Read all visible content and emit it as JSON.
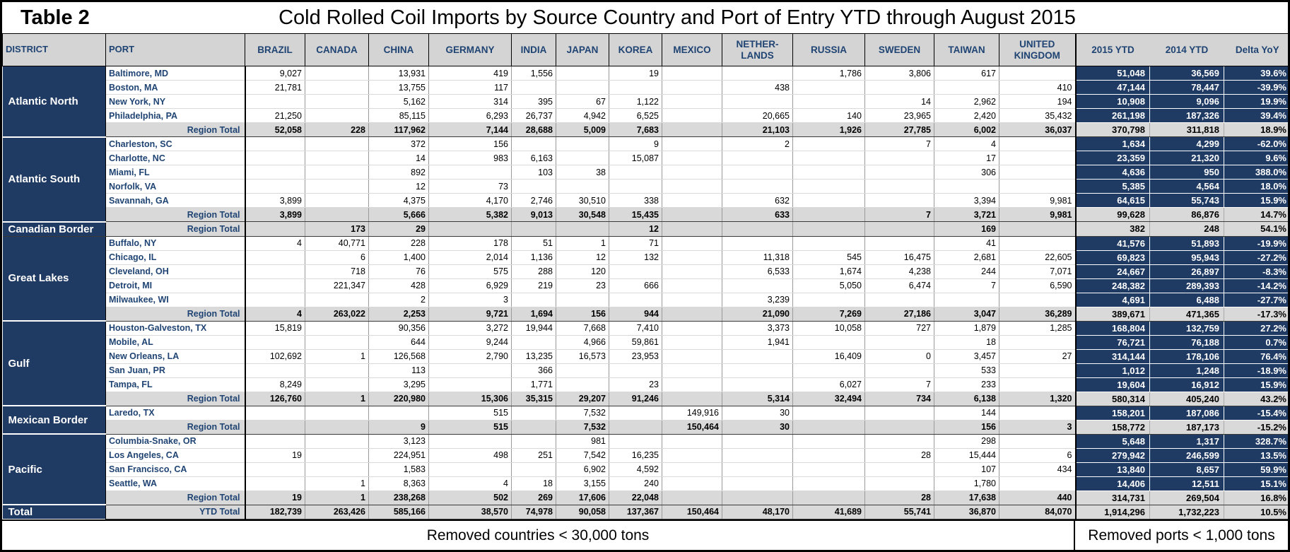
{
  "title": {
    "label": "Table 2",
    "text": "Cold Rolled Coil Imports by Source Country and Port of Entry YTD through August 2015"
  },
  "header": {
    "district": "DISTRICT",
    "port": "PORT",
    "countries": [
      "BRAZIL",
      "CANADA",
      "CHINA",
      "GERMANY",
      "INDIA",
      "JAPAN",
      "KOREA",
      "MEXICO",
      "NETHER-\nLANDS",
      "RUSSIA",
      "SWEDEN",
      "TAIWAN",
      "UNITED\nKINGDOM"
    ],
    "ytd_columns": [
      "2015 YTD",
      "2014 YTD",
      "Delta YoY"
    ]
  },
  "labels": {
    "region_total": "Region Total",
    "grand_total_district": "Total",
    "grand_total_row": "YTD Total"
  },
  "colors": {
    "navy": "#1f3a63",
    "header_gray": "#d4d4d4",
    "total_row_gray": "#d9d9d9",
    "label_blue": "#1f4473"
  },
  "districts": [
    {
      "name": "Atlantic North",
      "ports": [
        {
          "port": "Baltimore, MD",
          "values": [
            "9,027",
            "",
            "13,931",
            "419",
            "1,556",
            "",
            "19",
            "",
            "",
            "1,786",
            "3,806",
            "617",
            "",
            "51,048",
            "36,569",
            "39.6%"
          ]
        },
        {
          "port": "Boston, MA",
          "values": [
            "21,781",
            "",
            "13,755",
            "117",
            "",
            "",
            "",
            "",
            "438",
            "",
            "",
            "",
            "410",
            "47,144",
            "78,447",
            "-39.9%"
          ]
        },
        {
          "port": "New York, NY",
          "values": [
            "",
            "",
            "5,162",
            "314",
            "395",
            "67",
            "1,122",
            "",
            "",
            "",
            "14",
            "2,962",
            "194",
            "10,908",
            "9,096",
            "19.9%"
          ]
        },
        {
          "port": "Philadelphia, PA",
          "values": [
            "21,250",
            "",
            "85,115",
            "6,293",
            "26,737",
            "4,942",
            "6,525",
            "",
            "20,665",
            "140",
            "23,965",
            "2,420",
            "35,432",
            "261,198",
            "187,326",
            "39.4%"
          ]
        }
      ],
      "total": {
        "values": [
          "52,058",
          "228",
          "117,962",
          "7,144",
          "28,688",
          "5,009",
          "7,683",
          "",
          "21,103",
          "1,926",
          "27,785",
          "6,002",
          "36,037",
          "370,798",
          "311,818",
          "18.9%"
        ]
      }
    },
    {
      "name": "Atlantic South",
      "ports": [
        {
          "port": "Charleston, SC",
          "values": [
            "",
            "",
            "372",
            "156",
            "",
            "",
            "9",
            "",
            "2",
            "",
            "7",
            "4",
            "",
            "1,634",
            "4,299",
            "-62.0%"
          ]
        },
        {
          "port": "Charlotte, NC",
          "values": [
            "",
            "",
            "14",
            "983",
            "6,163",
            "",
            "15,087",
            "",
            "",
            "",
            "",
            "17",
            "",
            "23,359",
            "21,320",
            "9.6%"
          ]
        },
        {
          "port": "Miami, FL",
          "values": [
            "",
            "",
            "892",
            "",
            "103",
            "38",
            "",
            "",
            "",
            "",
            "",
            "306",
            "",
            "4,636",
            "950",
            "388.0%"
          ]
        },
        {
          "port": "Norfolk, VA",
          "values": [
            "",
            "",
            "12",
            "73",
            "",
            "",
            "",
            "",
            "",
            "",
            "",
            "",
            "",
            "5,385",
            "4,564",
            "18.0%"
          ]
        },
        {
          "port": "Savannah, GA",
          "values": [
            "3,899",
            "",
            "4,375",
            "4,170",
            "2,746",
            "30,510",
            "338",
            "",
            "632",
            "",
            "",
            "3,394",
            "9,981",
            "64,615",
            "55,743",
            "15.9%"
          ]
        }
      ],
      "total": {
        "values": [
          "3,899",
          "",
          "5,666",
          "5,382",
          "9,013",
          "30,548",
          "15,435",
          "",
          "633",
          "",
          "7",
          "3,721",
          "9,981",
          "99,628",
          "86,876",
          "14.7%"
        ]
      }
    },
    {
      "name": "Canadian Border",
      "ports": [],
      "total": {
        "values": [
          "",
          "173",
          "29",
          "",
          "",
          "",
          "12",
          "",
          "",
          "",
          "",
          "169",
          "",
          "382",
          "248",
          "54.1%"
        ]
      }
    },
    {
      "name": "Great Lakes",
      "ports": [
        {
          "port": "Buffalo, NY",
          "values": [
            "4",
            "40,771",
            "228",
            "178",
            "51",
            "1",
            "71",
            "",
            "",
            "",
            "",
            "41",
            "",
            "41,576",
            "51,893",
            "-19.9%"
          ]
        },
        {
          "port": "Chicago, IL",
          "values": [
            "",
            "6",
            "1,400",
            "2,014",
            "1,136",
            "12",
            "132",
            "",
            "11,318",
            "545",
            "16,475",
            "2,681",
            "22,605",
            "69,823",
            "95,943",
            "-27.2%"
          ]
        },
        {
          "port": "Cleveland, OH",
          "values": [
            "",
            "718",
            "76",
            "575",
            "288",
            "120",
            "",
            "",
            "6,533",
            "1,674",
            "4,238",
            "244",
            "7,071",
            "24,667",
            "26,897",
            "-8.3%"
          ]
        },
        {
          "port": "Detroit, MI",
          "values": [
            "",
            "221,347",
            "428",
            "6,929",
            "219",
            "23",
            "666",
            "",
            "",
            "5,050",
            "6,474",
            "7",
            "6,590",
            "248,382",
            "289,393",
            "-14.2%"
          ]
        },
        {
          "port": "Milwaukee, WI",
          "values": [
            "",
            "",
            "2",
            "3",
            "",
            "",
            "",
            "",
            "3,239",
            "",
            "",
            "",
            "",
            "4,691",
            "6,488",
            "-27.7%"
          ]
        }
      ],
      "total": {
        "values": [
          "4",
          "263,022",
          "2,253",
          "9,721",
          "1,694",
          "156",
          "944",
          "",
          "21,090",
          "7,269",
          "27,186",
          "3,047",
          "36,289",
          "389,671",
          "471,365",
          "-17.3%"
        ]
      }
    },
    {
      "name": "Gulf",
      "ports": [
        {
          "port": "Houston-Galveston, TX",
          "values": [
            "15,819",
            "",
            "90,356",
            "3,272",
            "19,944",
            "7,668",
            "7,410",
            "",
            "3,373",
            "10,058",
            "727",
            "1,879",
            "1,285",
            "168,804",
            "132,759",
            "27.2%"
          ]
        },
        {
          "port": "Mobile, AL",
          "values": [
            "",
            "",
            "644",
            "9,244",
            "",
            "4,966",
            "59,861",
            "",
            "1,941",
            "",
            "",
            "18",
            "",
            "76,721",
            "76,188",
            "0.7%"
          ]
        },
        {
          "port": "New Orleans, LA",
          "values": [
            "102,692",
            "1",
            "126,568",
            "2,790",
            "13,235",
            "16,573",
            "23,953",
            "",
            "",
            "16,409",
            "0",
            "3,457",
            "27",
            "314,144",
            "178,106",
            "76.4%"
          ]
        },
        {
          "port": "San Juan, PR",
          "values": [
            "",
            "",
            "113",
            "",
            "366",
            "",
            "",
            "",
            "",
            "",
            "",
            "533",
            "",
            "1,012",
            "1,248",
            "-18.9%"
          ]
        },
        {
          "port": "Tampa, FL",
          "values": [
            "8,249",
            "",
            "3,295",
            "",
            "1,771",
            "",
            "23",
            "",
            "",
            "6,027",
            "7",
            "233",
            "",
            "19,604",
            "16,912",
            "15.9%"
          ]
        }
      ],
      "total": {
        "values": [
          "126,760",
          "1",
          "220,980",
          "15,306",
          "35,315",
          "29,207",
          "91,246",
          "",
          "5,314",
          "32,494",
          "734",
          "6,138",
          "1,320",
          "580,314",
          "405,240",
          "43.2%"
        ]
      }
    },
    {
      "name": "Mexican Border",
      "ports": [
        {
          "port": "Laredo, TX",
          "values": [
            "",
            "",
            "",
            "515",
            "",
            "7,532",
            "",
            "149,916",
            "30",
            "",
            "",
            "144",
            "",
            "158,201",
            "187,086",
            "-15.4%"
          ]
        }
      ],
      "total": {
        "values": [
          "",
          "",
          "9",
          "515",
          "",
          "7,532",
          "",
          "150,464",
          "30",
          "",
          "",
          "156",
          "3",
          "158,772",
          "187,173",
          "-15.2%"
        ]
      }
    },
    {
      "name": "Pacific",
      "ports": [
        {
          "port": "Columbia-Snake, OR",
          "values": [
            "",
            "",
            "3,123",
            "",
            "",
            "981",
            "",
            "",
            "",
            "",
            "",
            "298",
            "",
            "5,648",
            "1,317",
            "328.7%"
          ]
        },
        {
          "port": "Los Angeles, CA",
          "values": [
            "19",
            "",
            "224,951",
            "498",
            "251",
            "7,542",
            "16,235",
            "",
            "",
            "",
            "28",
            "15,444",
            "6",
            "279,942",
            "246,599",
            "13.5%"
          ]
        },
        {
          "port": "San Francisco, CA",
          "values": [
            "",
            "",
            "1,583",
            "",
            "",
            "6,902",
            "4,592",
            "",
            "",
            "",
            "",
            "107",
            "434",
            "13,840",
            "8,657",
            "59.9%"
          ]
        },
        {
          "port": "Seattle, WA",
          "values": [
            "",
            "1",
            "8,363",
            "4",
            "18",
            "3,155",
            "240",
            "",
            "",
            "",
            "",
            "1,780",
            "",
            "14,406",
            "12,511",
            "15.1%"
          ]
        }
      ],
      "total": {
        "values": [
          "19",
          "1",
          "238,268",
          "502",
          "269",
          "17,606",
          "22,048",
          "",
          "",
          "",
          "28",
          "17,638",
          "440",
          "314,731",
          "269,504",
          "16.8%"
        ]
      }
    }
  ],
  "grand_total": {
    "values": [
      "182,739",
      "263,426",
      "585,166",
      "38,570",
      "74,978",
      "90,058",
      "137,367",
      "150,464",
      "48,170",
      "41,689",
      "55,741",
      "36,870",
      "84,070",
      "1,914,296",
      "1,732,223",
      "10.5%"
    ]
  },
  "footer": {
    "left": "Removed countries < 30,000 tons",
    "right": "Removed ports < 1,000 tons"
  }
}
